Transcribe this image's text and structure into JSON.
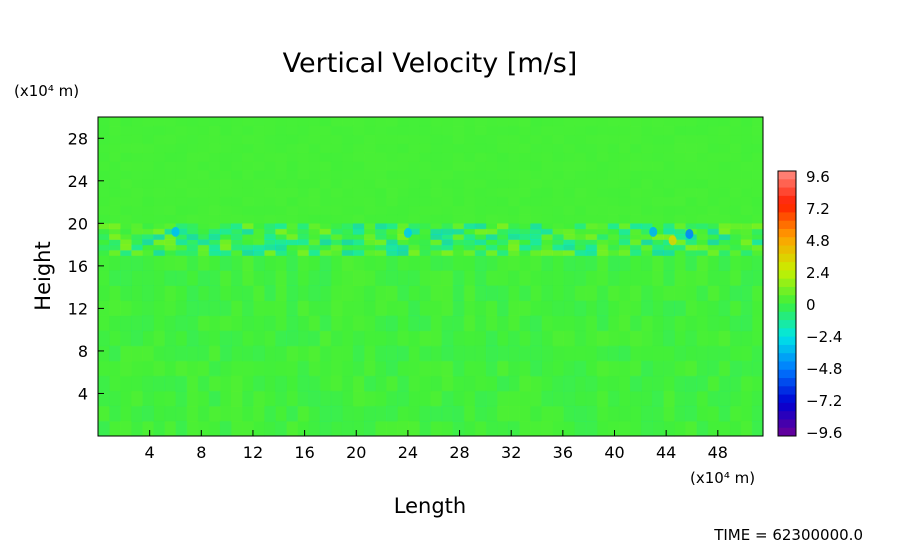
{
  "chart_data": {
    "type": "heatmap",
    "title": "Vertical Velocity [m/s]",
    "xlabel": "Length",
    "ylabel": "Height",
    "x_unit": "(x10⁴ m)",
    "y_unit": "(x10⁴ m)",
    "xlim": [
      0,
      51.5
    ],
    "ylim": [
      0,
      30
    ],
    "x_ticks": [
      4,
      8,
      12,
      16,
      20,
      24,
      28,
      32,
      36,
      40,
      44,
      48
    ],
    "y_ticks": [
      4,
      8,
      12,
      16,
      20,
      24,
      28
    ],
    "colorbar": {
      "ticks": [
        "9.6",
        "7.2",
        "4.8",
        "2.4",
        "0",
        "−2.4",
        "−4.8",
        "−7.2",
        "−9.6"
      ],
      "min": -9.6,
      "max": 9.6
    },
    "field_description_values": {
      "background": 0,
      "layer_band": {
        "y_range": [
          17,
          20
        ],
        "typical": [
          -3,
          2
        ]
      },
      "lower_region": {
        "y_range": [
          0,
          17
        ],
        "typical": [
          -1.5,
          1
        ]
      },
      "upper_region": {
        "y_range": [
          20,
          30
        ],
        "typical": [
          0,
          0.5
        ]
      }
    },
    "time_label": "TIME = 62300000.0"
  }
}
